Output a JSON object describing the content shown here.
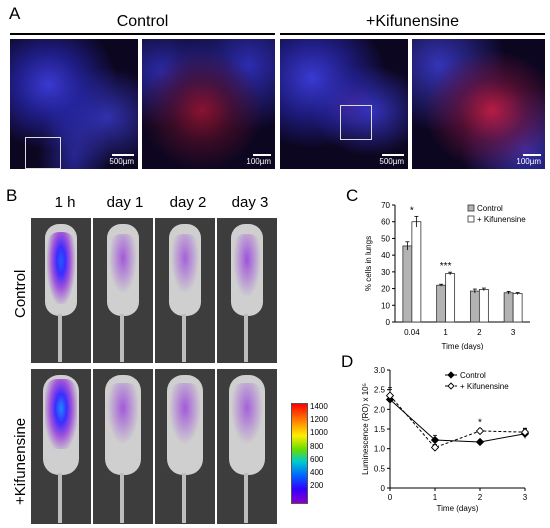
{
  "panel_a": {
    "letter": "A",
    "groups": [
      "Control",
      "+Kifunensine"
    ],
    "scale_labels": [
      "500µm",
      "100µm",
      "500µm",
      "100µm"
    ]
  },
  "panel_b": {
    "letter": "B",
    "timepoints": [
      "1 h",
      "day 1",
      "day 2",
      "day 3"
    ],
    "rows": [
      "Control",
      "+Kifunensine"
    ],
    "colorbar_ticks": [
      "1400",
      "1200",
      "1000",
      "800",
      "600",
      "400",
      "200"
    ]
  },
  "panel_c": {
    "letter": "C"
  },
  "panel_d": {
    "letter": "D"
  },
  "chart_data": [
    {
      "panel": "C",
      "type": "bar",
      "categories": [
        "0.04",
        "1",
        "2",
        "3"
      ],
      "xlabel": "Time (days)",
      "ylabel": "% cells in lungs",
      "ylim": [
        0,
        70
      ],
      "yticks": [
        0,
        10,
        20,
        30,
        40,
        50,
        60,
        70
      ],
      "series": [
        {
          "name": "Control",
          "values": [
            45.5,
            22,
            18.5,
            17.5
          ],
          "errors": [
            2.5,
            0.6,
            1.2,
            0.8
          ],
          "color": "#b3b3b3"
        },
        {
          "name": "+ Kifunensine",
          "values": [
            60,
            29,
            19.5,
            17
          ],
          "errors": [
            3.2,
            0.8,
            0.8,
            0.6
          ],
          "color": "#ffffff"
        }
      ],
      "significance": [
        {
          "category": "0.04",
          "label": "*"
        },
        {
          "category": "1",
          "label": "***"
        }
      ],
      "legend": "top-right"
    },
    {
      "panel": "D",
      "type": "line",
      "x": [
        0,
        1,
        2,
        3
      ],
      "xlabel": "Time (days)",
      "ylabel": "Luminescence (RO) x 10⁵",
      "xlim": [
        0,
        3
      ],
      "ylim": [
        0,
        3.0
      ],
      "yticks": [
        "0",
        "0.5",
        "1.0",
        "1.5",
        "2.0",
        "2.5",
        "3.0"
      ],
      "xticks": [
        "0",
        "1",
        "2",
        "3"
      ],
      "series": [
        {
          "name": "Control",
          "values": [
            2.25,
            1.22,
            1.17,
            1.38
          ],
          "errors": [
            0.25,
            0.12,
            0.05,
            0.12
          ],
          "marker": "filled-diamond",
          "line": "solid"
        },
        {
          "name": "+ Kifunensine",
          "values": [
            2.35,
            1.03,
            1.45,
            1.42
          ],
          "errors": [
            0.2,
            0.08,
            0.06,
            0.1
          ],
          "marker": "open-diamond",
          "line": "dashed"
        }
      ],
      "annotations": [
        {
          "x": 2,
          "label": "*"
        }
      ],
      "legend": "top-right"
    }
  ]
}
